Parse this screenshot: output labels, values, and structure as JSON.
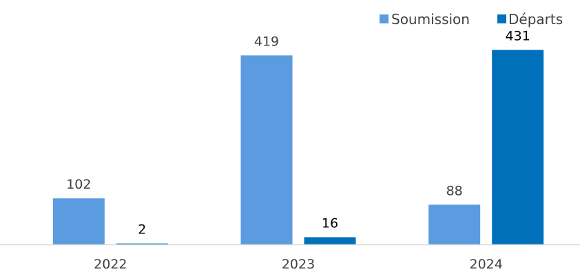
{
  "chart_data": {
    "type": "bar",
    "categories": [
      "2022",
      "2023",
      "2024"
    ],
    "series": [
      {
        "name": "Soumission",
        "values": [
          102,
          419,
          88
        ],
        "color": "#5B9BE0",
        "label_color": "#404040"
      },
      {
        "name": "Départs",
        "values": [
          2,
          16,
          431
        ],
        "color": "#0070BA",
        "label_color": "#000000"
      }
    ],
    "title": "",
    "xlabel": "",
    "ylabel": "",
    "ylim": [
      0,
      470
    ],
    "grid": false,
    "legend_position": "top-right",
    "axis_color": "#D9D9D9"
  }
}
